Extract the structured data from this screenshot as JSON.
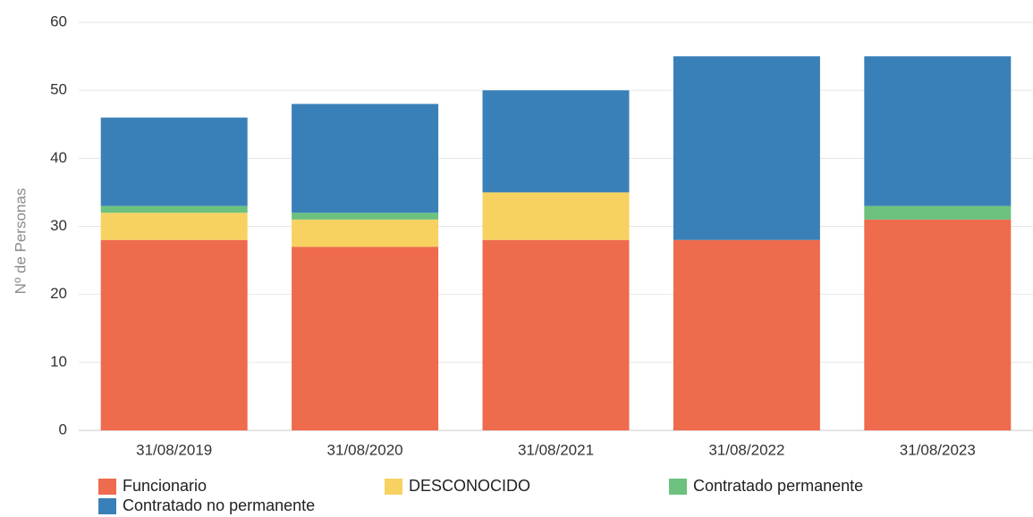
{
  "chart_data": {
    "type": "bar",
    "stacked": true,
    "categories": [
      "31/08/2019",
      "31/08/2020",
      "31/08/2021",
      "31/08/2022",
      "31/08/2023"
    ],
    "series": [
      {
        "name": "Funcionario",
        "color": "#EE6B4D",
        "values": [
          28,
          27,
          28,
          28,
          31
        ]
      },
      {
        "name": "DESCONOCIDO",
        "color": "#F7D261",
        "values": [
          4,
          4,
          7,
          0,
          0
        ]
      },
      {
        "name": "Contratado permanente",
        "color": "#6CC17E",
        "values": [
          1,
          1,
          0,
          0,
          2
        ]
      },
      {
        "name": "Contratado no permanente",
        "color": "#3A80B8",
        "values": [
          13,
          16,
          15,
          27,
          22
        ]
      }
    ],
    "ylabel": "Nº de Personas",
    "xlabel": "",
    "ylim": [
      0,
      60
    ],
    "yticks": [
      0,
      10,
      20,
      30,
      40,
      50,
      60
    ],
    "grid": true,
    "legend_position": "bottom"
  }
}
